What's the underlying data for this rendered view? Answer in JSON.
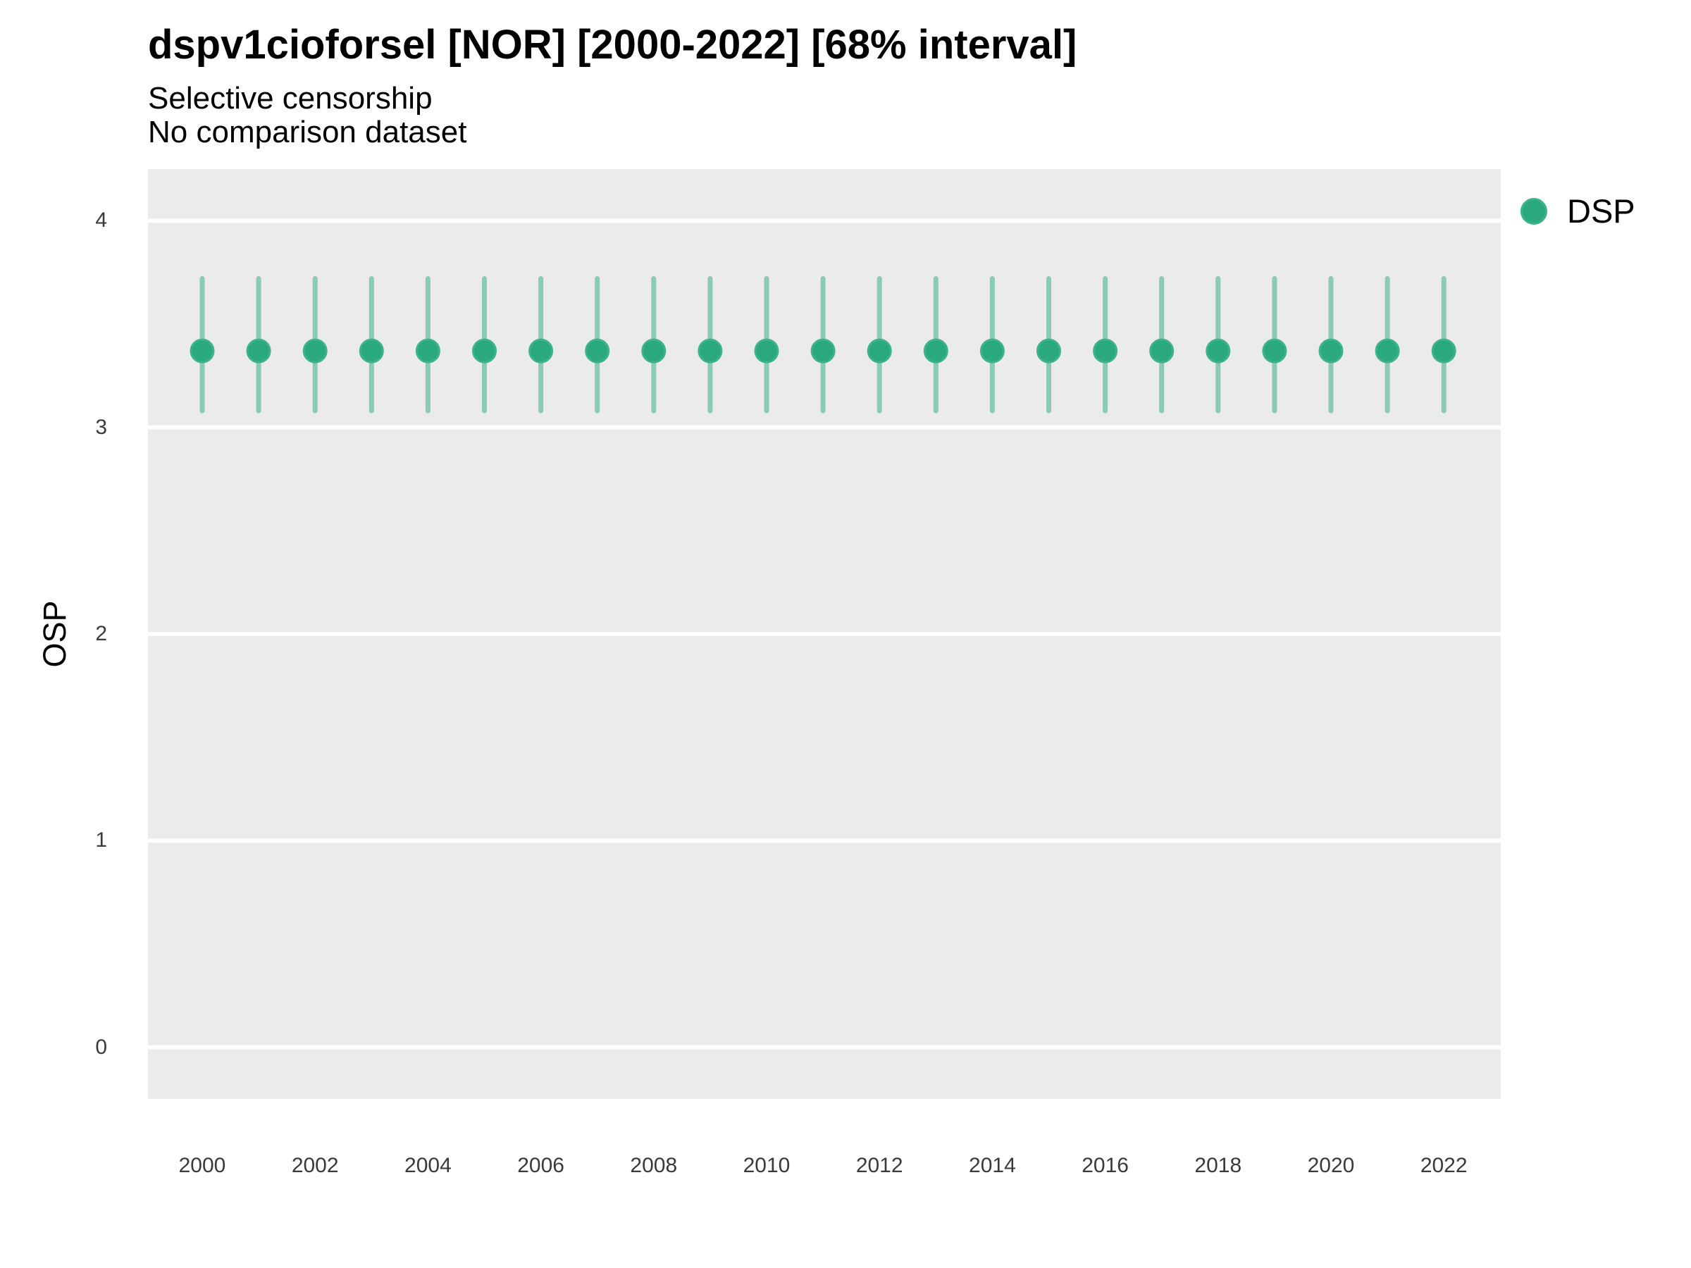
{
  "header": {
    "title": "dspv1cioforsel [NOR] [2000-2022] [68% interval]",
    "subtitle_line1": "Selective censorship",
    "subtitle_line2": "No comparison dataset"
  },
  "y_axis_title": "OSP",
  "legend": {
    "label": "DSP",
    "position": "right-top"
  },
  "colors": {
    "point_fill": "#2aa87e",
    "point_stroke": "#3eb28a",
    "interval_bar": "#8bcab3",
    "panel_background": "#ebebeb",
    "gridline": "#ffffff",
    "tick_text": "#3a3a3a",
    "text": "#000000"
  },
  "chart_data": {
    "type": "scatter",
    "title": "dspv1cioforsel [NOR] [2000-2022] [68% interval]",
    "subtitle": [
      "Selective censorship",
      "No comparison dataset"
    ],
    "xlabel": "",
    "ylabel": "OSP",
    "interval_level": "68%",
    "grid": "horizontal-major-only",
    "legend_position": "right-top",
    "xlim": [
      1999,
      2023
    ],
    "ylim": [
      -0.25,
      4.25
    ],
    "x_ticks": [
      2000,
      2002,
      2004,
      2006,
      2008,
      2010,
      2012,
      2014,
      2016,
      2018,
      2020,
      2022
    ],
    "y_ticks": [
      0,
      1,
      2,
      3,
      4
    ],
    "series": [
      {
        "name": "DSP",
        "x": [
          2000,
          2001,
          2002,
          2003,
          2004,
          2005,
          2006,
          2007,
          2008,
          2009,
          2010,
          2011,
          2012,
          2013,
          2014,
          2015,
          2016,
          2017,
          2018,
          2019,
          2020,
          2021,
          2022
        ],
        "y": [
          3.37,
          3.37,
          3.37,
          3.37,
          3.37,
          3.37,
          3.37,
          3.37,
          3.37,
          3.37,
          3.37,
          3.37,
          3.37,
          3.37,
          3.37,
          3.37,
          3.37,
          3.37,
          3.37,
          3.37,
          3.37,
          3.37,
          3.37
        ],
        "lo": [
          3.08,
          3.08,
          3.08,
          3.08,
          3.08,
          3.08,
          3.08,
          3.08,
          3.08,
          3.08,
          3.08,
          3.08,
          3.08,
          3.08,
          3.08,
          3.08,
          3.08,
          3.08,
          3.08,
          3.08,
          3.08,
          3.08,
          3.08
        ],
        "hi": [
          3.72,
          3.72,
          3.72,
          3.72,
          3.72,
          3.72,
          3.72,
          3.72,
          3.72,
          3.72,
          3.72,
          3.72,
          3.72,
          3.72,
          3.72,
          3.72,
          3.72,
          3.72,
          3.72,
          3.72,
          3.72,
          3.72,
          3.72
        ]
      }
    ]
  }
}
